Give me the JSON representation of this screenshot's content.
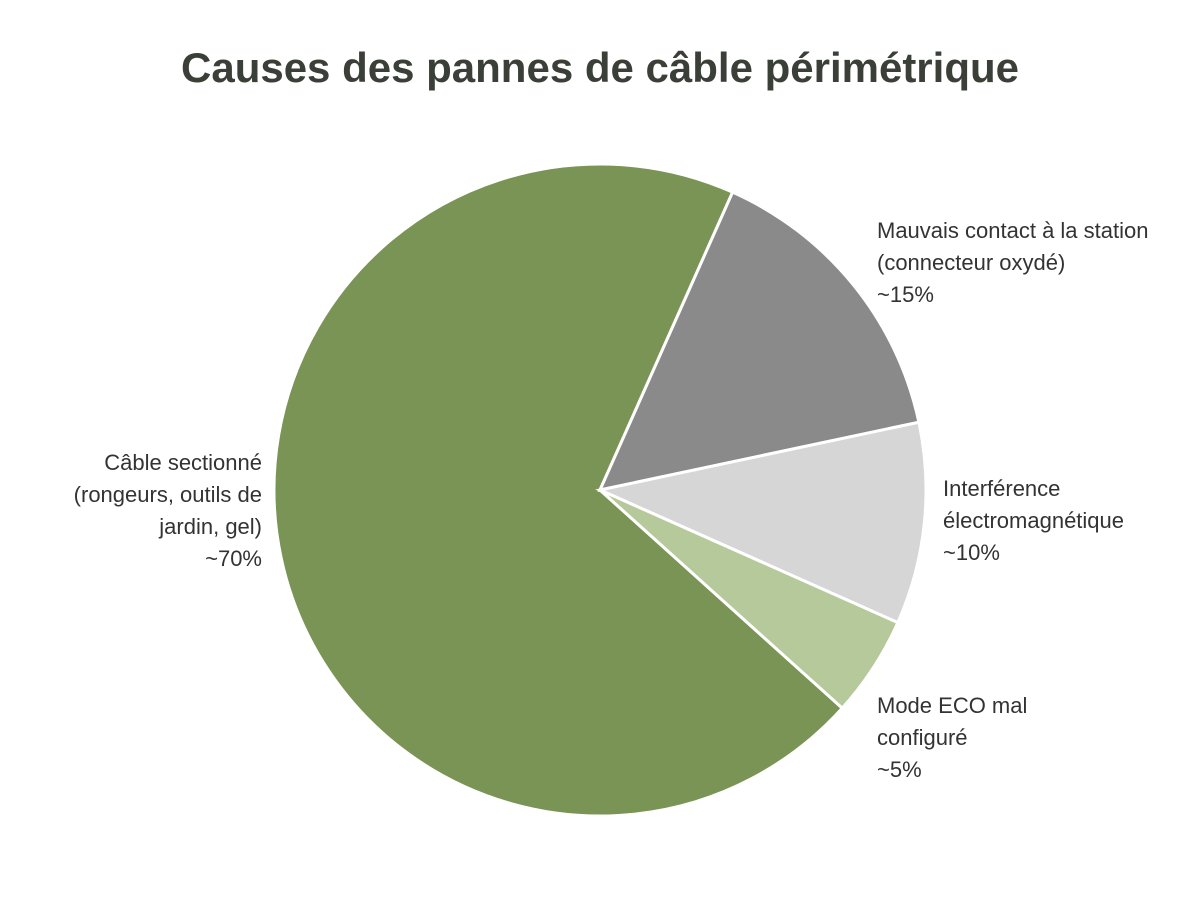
{
  "chart_data": {
    "type": "pie",
    "title": "Causes des pannes de câble périmétrique",
    "categories": [
      "Câble sectionné (rongeurs, outils de jardin, gel)",
      "Mauvais contact à la station (connecteur oxydé)",
      "Interférence électromagnétique",
      "Mode ECO mal configuré"
    ],
    "values": [
      70,
      15,
      10,
      5
    ],
    "value_labels": [
      "~70%",
      "~15%",
      "~10%",
      "~5%"
    ],
    "colors": [
      "#7a9455",
      "#8a8a8a",
      "#d6d6d6",
      "#b5c99a"
    ]
  }
}
